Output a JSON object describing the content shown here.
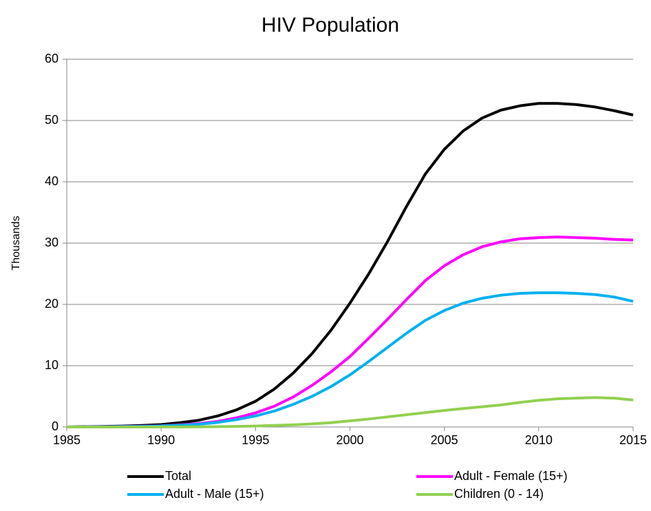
{
  "chart_data": {
    "type": "line",
    "title": "HIV Population",
    "y_label": "Thousands",
    "x": [
      1985,
      1986,
      1987,
      1988,
      1989,
      1990,
      1991,
      1992,
      1993,
      1994,
      1995,
      1996,
      1997,
      1998,
      1999,
      2000,
      2001,
      2002,
      2003,
      2004,
      2005,
      2006,
      2007,
      2008,
      2009,
      2010,
      2011,
      2012,
      2013,
      2014,
      2015
    ],
    "series": [
      {
        "name": "Total",
        "color": "#000000",
        "values": [
          0,
          0.05,
          0.1,
          0.15,
          0.25,
          0.4,
          0.7,
          1.1,
          1.8,
          2.8,
          4.2,
          6.2,
          8.8,
          12,
          15.8,
          20.2,
          25,
          30.3,
          36,
          41.3,
          45.3,
          48.3,
          50.4,
          51.7,
          52.4,
          52.8,
          52.8,
          52.6,
          52.2,
          51.6,
          50.9
        ]
      },
      {
        "name": "Adult - Female (15+)",
        "color": "#ff00ff",
        "values": [
          0,
          0.02,
          0.05,
          0.08,
          0.12,
          0.2,
          0.35,
          0.55,
          0.9,
          1.5,
          2.3,
          3.4,
          4.9,
          6.8,
          9,
          11.5,
          14.5,
          17.6,
          20.8,
          23.9,
          26.3,
          28.1,
          29.4,
          30.2,
          30.7,
          30.9,
          31,
          30.9,
          30.8,
          30.6,
          30.5
        ]
      },
      {
        "name": "Adult - Male (15+)",
        "color": "#00b0f0",
        "values": [
          0,
          0.02,
          0.04,
          0.07,
          0.1,
          0.17,
          0.3,
          0.45,
          0.75,
          1.2,
          1.8,
          2.6,
          3.7,
          5,
          6.6,
          8.5,
          10.7,
          13,
          15.3,
          17.4,
          19,
          20.2,
          21,
          21.5,
          21.8,
          21.9,
          21.9,
          21.8,
          21.6,
          21.2,
          20.5
        ]
      },
      {
        "name": "Children (0 - 14)",
        "color": "#92d050",
        "values": [
          0,
          0,
          0,
          0,
          0,
          0.01,
          0.02,
          0.03,
          0.05,
          0.1,
          0.16,
          0.25,
          0.35,
          0.5,
          0.7,
          1,
          1.3,
          1.65,
          2,
          2.35,
          2.7,
          3,
          3.3,
          3.6,
          4,
          4.35,
          4.6,
          4.7,
          4.8,
          4.7,
          4.4
        ]
      }
    ],
    "xlim": [
      1985,
      2015
    ],
    "xticks": [
      1985,
      1990,
      1995,
      2000,
      2005,
      2010,
      2015
    ],
    "ylim": [
      0,
      60
    ],
    "yticks": [
      0,
      10,
      20,
      30,
      40,
      50,
      60
    ],
    "grid": true,
    "legend": "bottom"
  }
}
